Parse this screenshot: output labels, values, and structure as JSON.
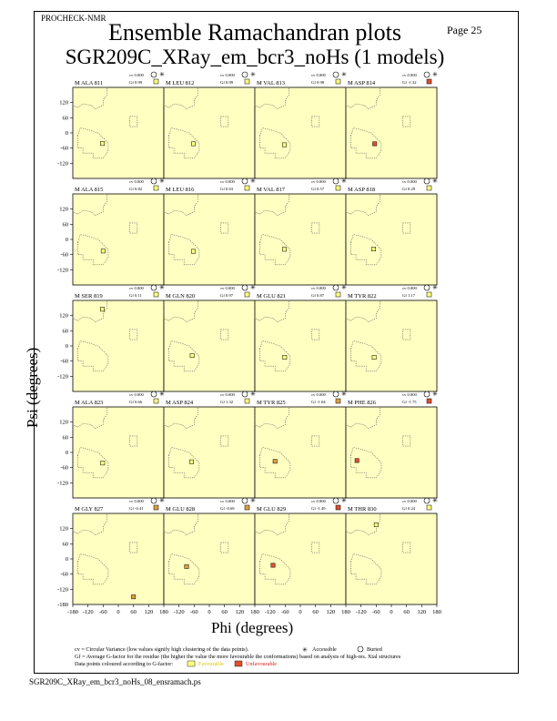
{
  "header": {
    "program": "PROCHECK-NMR",
    "page": "Page 25",
    "title": "Ensemble Ramachandran plots",
    "subtitle": "SGR209C_XRay_em_bcr3_noHs (1 models)"
  },
  "axes": {
    "xlabel": "Phi (degrees)",
    "ylabel": "Psi (degrees)",
    "x_ticks": [
      "-180",
      "-120",
      "-60",
      "0",
      "60",
      "120",
      "180"
    ],
    "y_ticks": [
      "120",
      "60",
      "0",
      "-60",
      "-120"
    ],
    "y_bottom_tick": "-180"
  },
  "legend": {
    "cv_text": "cv = Circular Variance (low values signify high clustering of the data points).",
    "accessible": "Accessible",
    "buried": "Buried",
    "gf_text": "Gf = Average G-factor for the residue (the higher the value the more favourable the conformations) based on analysis of high-res. Xtal structures",
    "colour_text": "Data points coloured according to G-factor:",
    "favourable": "Favourable",
    "unfavourable": "Unfavourable"
  },
  "footer": {
    "filename": "SGR209C_XRay_em_bcr3_noHs_08_ensramach.ps"
  },
  "colors": {
    "panel_bg": "#ffffc2",
    "favourable": "#ffff80",
    "mid": "#e0a040",
    "unfavourable": "#e05030"
  },
  "chart_data": {
    "type": "scatter",
    "xlim": [
      -180,
      180
    ],
    "ylim": [
      -180,
      180
    ],
    "panels": [
      {
        "residue": "M ALA 811",
        "cv": "cv 0.000",
        "gf": "Gf 0.99",
        "gf_value": 0.99,
        "access": "buried",
        "phi": -63,
        "psi": -42
      },
      {
        "residue": "M LEU 812",
        "cv": "cv 0.000",
        "gf": "Gf 0.99",
        "gf_value": 0.99,
        "access": "buried",
        "phi": -63,
        "psi": -43
      },
      {
        "residue": "M VAL 813",
        "cv": "cv 0.000",
        "gf": "Gf 0.98",
        "gf_value": 0.98,
        "access": "buried",
        "phi": -63,
        "psi": -47
      },
      {
        "residue": "M ASP 814",
        "cv": "cv 0.000",
        "gf": "Gf -1.32",
        "gf_value": -1.32,
        "access": "accessible",
        "phi": -66,
        "psi": -43
      },
      {
        "residue": "M ALA 815",
        "cv": "cv 0.000",
        "gf": "Gf 0.82",
        "gf_value": 0.82,
        "access": "buried",
        "phi": -60,
        "psi": -46
      },
      {
        "residue": "M LEU 816",
        "cv": "cv 0.000",
        "gf": "Gf 0.63",
        "gf_value": 0.63,
        "access": "buried",
        "phi": -63,
        "psi": -47
      },
      {
        "residue": "M VAL 817",
        "cv": "cv 0.000",
        "gf": "Gf 0.57",
        "gf_value": 0.57,
        "access": "buried",
        "phi": -63,
        "psi": -39
      },
      {
        "residue": "M ASP 818",
        "cv": "cv 0.000",
        "gf": "Gf 0.29",
        "gf_value": 0.29,
        "access": "accessible",
        "phi": -70,
        "psi": -38
      },
      {
        "residue": "M SER 819",
        "cv": "cv 0.000",
        "gf": "Gf 0.11",
        "gf_value": 0.11,
        "access": "accessible",
        "phi": -63,
        "psi": 145
      },
      {
        "residue": "M GLN 820",
        "cv": "cv 0.000",
        "gf": "Gf 0.97",
        "gf_value": 0.97,
        "access": "accessible",
        "phi": -68,
        "psi": -38
      },
      {
        "residue": "M GLU 821",
        "cv": "cv 0.000",
        "gf": "Gf 0.87",
        "gf_value": 0.87,
        "access": "accessible",
        "phi": -62,
        "psi": -45
      },
      {
        "residue": "M TYR 822",
        "cv": "cv 0.000",
        "gf": "Gf 1.17",
        "gf_value": 1.17,
        "access": "accessible",
        "phi": -68,
        "psi": -45
      },
      {
        "residue": "M ALA 823",
        "cv": "cv 0.000",
        "gf": "Gf 0.66",
        "gf_value": 0.66,
        "access": "accessible",
        "phi": -62,
        "psi": -42
      },
      {
        "residue": "M ASP 824",
        "cv": "cv 0.000",
        "gf": "Gf 1.32",
        "gf_value": 1.32,
        "access": "accessible",
        "phi": -70,
        "psi": -37
      },
      {
        "residue": "M TYR 825",
        "cv": "cv 0.000",
        "gf": "Gf -1.04",
        "gf_value": -1.04,
        "access": "accessible",
        "phi": -100,
        "psi": -35
      },
      {
        "residue": "M PHE 826",
        "cv": "cv 0.000",
        "gf": "Gf -1.75",
        "gf_value": -1.75,
        "access": "accessible",
        "phi": -136,
        "psi": -32
      },
      {
        "residue": "M GLY 827",
        "cv": "cv 0.000",
        "gf": "Gf -0.41",
        "gf_value": -0.41,
        "access": "buried",
        "phi": 60,
        "psi": -150
      },
      {
        "residue": "M GLU 828",
        "cv": "cv 0.000",
        "gf": "Gf -0.69",
        "gf_value": -0.69,
        "access": "accessible",
        "phi": -90,
        "psi": -30
      },
      {
        "residue": "M GLU 829",
        "cv": "cv 0.000",
        "gf": "Gf -1.49",
        "gf_value": -1.49,
        "access": "accessible",
        "phi": -108,
        "psi": -25
      },
      {
        "residue": "M THR 830",
        "cv": "cv 0.000",
        "gf": "Gf 0.24",
        "gf_value": 0.24,
        "access": "accessible",
        "phi": -60,
        "psi": 135
      }
    ]
  }
}
